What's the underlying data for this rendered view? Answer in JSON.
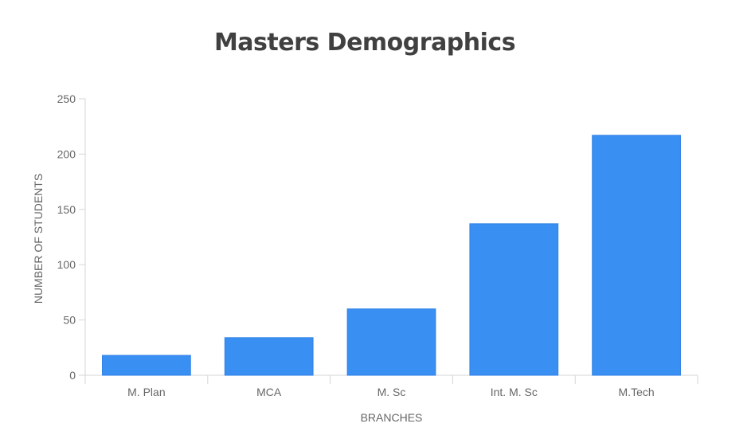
{
  "chart_data": {
    "type": "bar",
    "title": "Masters Demographics",
    "xlabel": "BRANCHES",
    "ylabel": "NUMBER OF STUDENTS",
    "categories": [
      "M. Plan",
      "MCA",
      "M. Sc",
      "Int. M. Sc",
      "M.Tech"
    ],
    "series": [
      {
        "values": [
          18,
          34,
          60,
          137,
          217
        ]
      }
    ],
    "ylim": [
      0,
      250
    ],
    "yticks": [
      0,
      50,
      100,
      150,
      200,
      250
    ],
    "legend": "none",
    "grid": false,
    "bar_color": "#3a8ff2",
    "axis_color": "#d6d6d6"
  }
}
